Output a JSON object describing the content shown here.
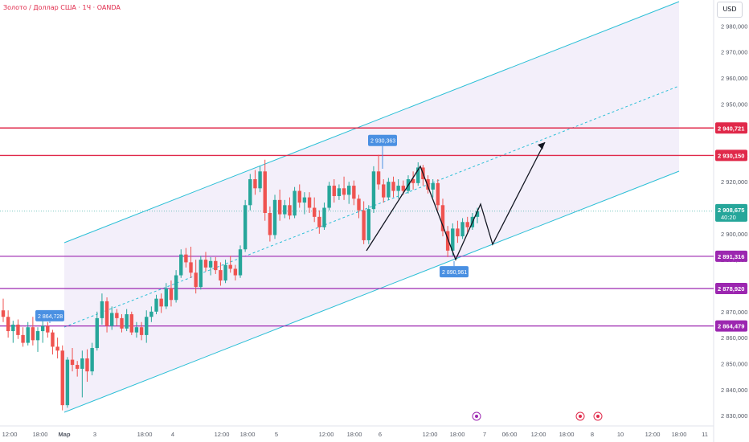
{
  "header": {
    "title": "Золото / Доллар США · 1Ч · OANDA",
    "currency": "USD"
  },
  "colors": {
    "up": "#26a69a",
    "down": "#ef5350",
    "channel": "#2bbfd6",
    "channel_fill": "#f3effa",
    "resistance": "#e0294a",
    "support": "#9c27b0",
    "price_label": "#26a69a",
    "callout": "#4a90e2"
  },
  "chart_data": {
    "type": "candlestick",
    "title": "Золото / Доллар США · 1Ч · OANDA",
    "unit": "USD",
    "ylim": [
      2826,
      2990
    ],
    "y_ticks": [
      "2 830,000",
      "2 840,000",
      "2 850,000",
      "2 860,000",
      "2 870,000",
      "2 880,000",
      "2 890,000",
      "2 900,000",
      "2 910,000",
      "2 920,000",
      "2 930,000",
      "2 940,000",
      "2 950,000",
      "2 960,000",
      "2 970,000",
      "2 980,000"
    ],
    "x_tick_labels": [
      "12:00",
      "18:00",
      "Мар",
      "3",
      "18:00",
      "4",
      "12:00",
      "18:00",
      "5",
      "12:00",
      "18:00",
      "6",
      "12:00",
      "18:00",
      "7",
      "06:00",
      "12:00",
      "18:00",
      "8",
      "10",
      "12:00",
      "18:00",
      "11"
    ],
    "horizontal_levels": [
      {
        "label": "2 940,721",
        "value": 2940.721,
        "kind": "resistance"
      },
      {
        "label": "2 930,150",
        "value": 2930.15,
        "kind": "resistance"
      },
      {
        "label": "2 891,316",
        "value": 2891.316,
        "kind": "support"
      },
      {
        "label": "2 878,920",
        "value": 2878.92,
        "kind": "support"
      },
      {
        "label": "2 864,479",
        "value": 2864.479,
        "kind": "support"
      }
    ],
    "current_price": {
      "label": "2 908,675",
      "countdown": "40:20",
      "value": 2908.675
    },
    "callouts": [
      {
        "label": "2 864,728",
        "value": 2864.728
      },
      {
        "label": "2 930,363",
        "value": 2930.363
      },
      {
        "label": "2 890,961",
        "value": 2890.961
      }
    ],
    "candles": [
      [
        2870.5,
        2875.0,
        2866.0,
        2868.0
      ],
      [
        2868.0,
        2870.5,
        2860.0,
        2862.5
      ],
      [
        2862.5,
        2866.5,
        2858.0,
        2865.0
      ],
      [
        2865.0,
        2867.0,
        2859.5,
        2861.0
      ],
      [
        2861.0,
        2864.0,
        2856.5,
        2858.0
      ],
      [
        2858.0,
        2866.0,
        2857.0,
        2864.0
      ],
      [
        2864.0,
        2868.0,
        2857.0,
        2859.0
      ],
      [
        2859.0,
        2864.0,
        2854.5,
        2862.5
      ],
      [
        2862.5,
        2866.5,
        2858.0,
        2864.5
      ],
      [
        2864.5,
        2866.0,
        2860.0,
        2862.0
      ],
      [
        2862.0,
        2863.0,
        2853.5,
        2856.5
      ],
      [
        2856.5,
        2860.0,
        2852.0,
        2855.0
      ],
      [
        2855.0,
        2857.0,
        2832.0,
        2834.0
      ],
      [
        2834.0,
        2852.5,
        2833.0,
        2851.5
      ],
      [
        2851.5,
        2856.0,
        2847.0,
        2849.5
      ],
      [
        2849.5,
        2851.0,
        2845.0,
        2848.0
      ],
      [
        2848.0,
        2855.0,
        2837.0,
        2852.0
      ],
      [
        2852.0,
        2855.5,
        2843.0,
        2847.0
      ],
      [
        2847.0,
        2858.0,
        2845.5,
        2856.0
      ],
      [
        2856.0,
        2870.0,
        2855.0,
        2867.5
      ],
      [
        2867.5,
        2877.0,
        2865.0,
        2874.0
      ],
      [
        2874.0,
        2875.5,
        2862.0,
        2864.5
      ],
      [
        2864.5,
        2872.0,
        2863.0,
        2869.5
      ],
      [
        2869.5,
        2871.0,
        2864.5,
        2867.5
      ],
      [
        2867.5,
        2869.0,
        2862.0,
        2863.5
      ],
      [
        2863.5,
        2871.0,
        2862.5,
        2869.0
      ],
      [
        2869.0,
        2870.0,
        2861.0,
        2862.0
      ],
      [
        2862.0,
        2866.0,
        2860.0,
        2864.0
      ],
      [
        2864.0,
        2866.0,
        2859.0,
        2861.0
      ],
      [
        2861.0,
        2870.5,
        2858.0,
        2868.0
      ],
      [
        2868.0,
        2872.0,
        2866.0,
        2870.0
      ],
      [
        2870.0,
        2876.5,
        2869.0,
        2875.0
      ],
      [
        2875.0,
        2877.0,
        2869.5,
        2872.0
      ],
      [
        2872.0,
        2881.0,
        2871.0,
        2879.0
      ],
      [
        2879.0,
        2882.0,
        2872.0,
        2874.5
      ],
      [
        2874.5,
        2886.0,
        2873.5,
        2884.0
      ],
      [
        2884.0,
        2894.0,
        2883.0,
        2892.0
      ],
      [
        2892.0,
        2894.5,
        2887.0,
        2889.0
      ],
      [
        2889.0,
        2895.0,
        2883.0,
        2885.0
      ],
      [
        2885.0,
        2890.0,
        2877.0,
        2879.5
      ],
      [
        2879.5,
        2891.5,
        2878.5,
        2890.0
      ],
      [
        2890.0,
        2893.0,
        2885.5,
        2887.0
      ],
      [
        2887.0,
        2891.0,
        2884.0,
        2889.5
      ],
      [
        2889.5,
        2891.0,
        2884.5,
        2886.0
      ],
      [
        2886.0,
        2889.0,
        2880.0,
        2882.0
      ],
      [
        2882.0,
        2890.0,
        2881.0,
        2888.0
      ],
      [
        2888.0,
        2891.5,
        2885.0,
        2886.5
      ],
      [
        2886.5,
        2888.0,
        2882.0,
        2884.0
      ],
      [
        2884.0,
        2895.5,
        2883.0,
        2894.0
      ],
      [
        2894.0,
        2913.0,
        2893.0,
        2911.0
      ],
      [
        2911.0,
        2923.0,
        2909.0,
        2921.0
      ],
      [
        2921.0,
        2924.5,
        2915.0,
        2917.5
      ],
      [
        2917.5,
        2926.0,
        2916.0,
        2924.0
      ],
      [
        2924.0,
        2928.5,
        2905.0,
        2908.0
      ],
      [
        2908.0,
        2910.5,
        2897.0,
        2899.5
      ],
      [
        2899.5,
        2915.0,
        2898.0,
        2913.0
      ],
      [
        2913.0,
        2917.0,
        2905.0,
        2907.5
      ],
      [
        2907.5,
        2913.0,
        2906.0,
        2911.0
      ],
      [
        2911.0,
        2914.0,
        2905.5,
        2907.0
      ],
      [
        2907.0,
        2918.0,
        2906.0,
        2916.5
      ],
      [
        2916.5,
        2919.0,
        2910.0,
        2912.0
      ],
      [
        2912.0,
        2916.0,
        2907.5,
        2914.0
      ],
      [
        2914.0,
        2916.0,
        2908.0,
        2910.0
      ],
      [
        2910.0,
        2914.0,
        2904.5,
        2906.5
      ],
      [
        2906.5,
        2909.0,
        2900.0,
        2902.5
      ],
      [
        2902.5,
        2912.0,
        2901.5,
        2910.0
      ],
      [
        2910.0,
        2920.0,
        2909.0,
        2918.5
      ],
      [
        2918.5,
        2921.0,
        2912.0,
        2914.5
      ],
      [
        2914.5,
        2919.0,
        2913.0,
        2917.5
      ],
      [
        2917.5,
        2922.0,
        2913.0,
        2915.0
      ],
      [
        2915.0,
        2920.0,
        2911.5,
        2918.5
      ],
      [
        2918.5,
        2920.5,
        2911.0,
        2913.5
      ],
      [
        2913.5,
        2915.0,
        2906.0,
        2909.0
      ],
      [
        2909.0,
        2912.5,
        2896.0,
        2897.5
      ],
      [
        2897.5,
        2911.0,
        2896.0,
        2909.5
      ],
      [
        2909.5,
        2926.0,
        2908.0,
        2924.0
      ],
      [
        2924.0,
        2930.4,
        2917.0,
        2919.0
      ],
      [
        2919.0,
        2921.0,
        2912.0,
        2914.0
      ],
      [
        2914.0,
        2921.5,
        2913.0,
        2920.0
      ],
      [
        2920.0,
        2922.0,
        2914.0,
        2916.5
      ],
      [
        2916.5,
        2921.0,
        2913.5,
        2918.5
      ],
      [
        2918.5,
        2920.5,
        2915.0,
        2916.5
      ],
      [
        2916.5,
        2922.5,
        2915.5,
        2921.0
      ],
      [
        2921.0,
        2924.0,
        2917.0,
        2919.5
      ],
      [
        2919.5,
        2927.5,
        2918.5,
        2925.5
      ],
      [
        2925.5,
        2926.5,
        2918.5,
        2921.0
      ],
      [
        2921.0,
        2922.5,
        2915.5,
        2917.0
      ],
      [
        2917.0,
        2921.0,
        2914.0,
        2919.5
      ],
      [
        2919.5,
        2921.0,
        2909.0,
        2911.0
      ],
      [
        2911.0,
        2913.5,
        2899.0,
        2901.0
      ],
      [
        2901.0,
        2903.0,
        2891.0,
        2893.5
      ],
      [
        2893.5,
        2904.0,
        2891.5,
        2902.0
      ],
      [
        2902.0,
        2905.0,
        2896.5,
        2899.0
      ],
      [
        2899.0,
        2906.0,
        2898.0,
        2904.5
      ],
      [
        2904.5,
        2906.5,
        2900.5,
        2902.5
      ],
      [
        2902.5,
        2908.0,
        2901.5,
        2906.5
      ],
      [
        2906.5,
        2910.0,
        2904.0,
        2908.675
      ]
    ]
  }
}
